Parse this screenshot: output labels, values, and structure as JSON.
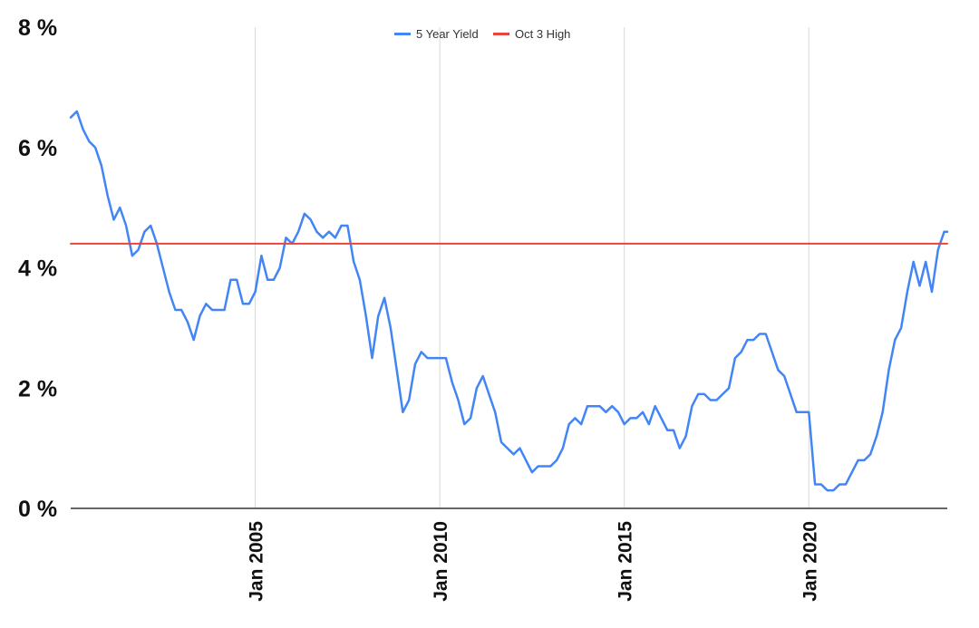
{
  "chart_data": {
    "type": "line",
    "title": "",
    "xlabel": "",
    "ylabel": "",
    "ylim": [
      0,
      8
    ],
    "xlim": [
      "2000-01",
      "2023-10"
    ],
    "grid": "vertical",
    "legend_position": "top",
    "y_ticks": [
      {
        "value": 0,
        "label": "0 %"
      },
      {
        "value": 2,
        "label": "2 %"
      },
      {
        "value": 4,
        "label": "4 %"
      },
      {
        "value": 6,
        "label": "6 %"
      },
      {
        "value": 8,
        "label": "8 %"
      }
    ],
    "x_ticks": [
      {
        "value": "2005-01",
        "label": "Jan 2005"
      },
      {
        "value": "2010-01",
        "label": "Jan 2010"
      },
      {
        "value": "2015-01",
        "label": "Jan 2015"
      },
      {
        "value": "2020-01",
        "label": "Jan 2020"
      }
    ],
    "series": [
      {
        "name": "5 Year Yield",
        "color": "#4285F4",
        "x": [
          "2000-01",
          "2000-03",
          "2000-05",
          "2000-07",
          "2000-09",
          "2000-11",
          "2001-01",
          "2001-03",
          "2001-05",
          "2001-07",
          "2001-09",
          "2001-11",
          "2002-01",
          "2002-03",
          "2002-05",
          "2002-07",
          "2002-09",
          "2002-11",
          "2003-01",
          "2003-03",
          "2003-05",
          "2003-07",
          "2003-09",
          "2003-11",
          "2004-01",
          "2004-03",
          "2004-05",
          "2004-07",
          "2004-09",
          "2004-11",
          "2005-01",
          "2005-03",
          "2005-05",
          "2005-07",
          "2005-09",
          "2005-11",
          "2006-01",
          "2006-03",
          "2006-05",
          "2006-07",
          "2006-09",
          "2006-11",
          "2007-01",
          "2007-03",
          "2007-05",
          "2007-07",
          "2007-09",
          "2007-11",
          "2008-01",
          "2008-03",
          "2008-05",
          "2008-07",
          "2008-09",
          "2008-11",
          "2009-01",
          "2009-03",
          "2009-05",
          "2009-07",
          "2009-09",
          "2009-11",
          "2010-01",
          "2010-03",
          "2010-05",
          "2010-07",
          "2010-09",
          "2010-11",
          "2011-01",
          "2011-03",
          "2011-05",
          "2011-07",
          "2011-09",
          "2011-11",
          "2012-01",
          "2012-03",
          "2012-05",
          "2012-07",
          "2012-09",
          "2012-11",
          "2013-01",
          "2013-03",
          "2013-05",
          "2013-07",
          "2013-09",
          "2013-11",
          "2014-01",
          "2014-03",
          "2014-05",
          "2014-07",
          "2014-09",
          "2014-11",
          "2015-01",
          "2015-03",
          "2015-05",
          "2015-07",
          "2015-09",
          "2015-11",
          "2016-01",
          "2016-03",
          "2016-05",
          "2016-07",
          "2016-09",
          "2016-11",
          "2017-01",
          "2017-03",
          "2017-05",
          "2017-07",
          "2017-09",
          "2017-11",
          "2018-01",
          "2018-03",
          "2018-05",
          "2018-07",
          "2018-09",
          "2018-11",
          "2019-01",
          "2019-03",
          "2019-05",
          "2019-07",
          "2019-09",
          "2019-11",
          "2020-01",
          "2020-03",
          "2020-05",
          "2020-07",
          "2020-09",
          "2020-11",
          "2021-01",
          "2021-03",
          "2021-05",
          "2021-07",
          "2021-09",
          "2021-11",
          "2022-01",
          "2022-03",
          "2022-05",
          "2022-07",
          "2022-09",
          "2022-11",
          "2023-01",
          "2023-03",
          "2023-05",
          "2023-07",
          "2023-09",
          "2023-10"
        ],
        "y": [
          6.5,
          6.6,
          6.3,
          6.1,
          6.0,
          5.7,
          5.2,
          4.8,
          5.0,
          4.7,
          4.2,
          4.3,
          4.6,
          4.7,
          4.4,
          4.0,
          3.6,
          3.3,
          3.3,
          3.1,
          2.8,
          3.2,
          3.4,
          3.3,
          3.3,
          3.3,
          3.8,
          3.8,
          3.4,
          3.4,
          3.6,
          4.2,
          3.8,
          3.8,
          4.0,
          4.5,
          4.4,
          4.6,
          4.9,
          4.8,
          4.6,
          4.5,
          4.6,
          4.5,
          4.7,
          4.7,
          4.1,
          3.8,
          3.2,
          2.5,
          3.2,
          3.5,
          3.0,
          2.3,
          1.6,
          1.8,
          2.4,
          2.6,
          2.5,
          2.5,
          2.5,
          2.5,
          2.1,
          1.8,
          1.4,
          1.5,
          2.0,
          2.2,
          1.9,
          1.6,
          1.1,
          1.0,
          0.9,
          1.0,
          0.8,
          0.6,
          0.7,
          0.7,
          0.7,
          0.8,
          1.0,
          1.4,
          1.5,
          1.4,
          1.7,
          1.7,
          1.7,
          1.6,
          1.7,
          1.6,
          1.4,
          1.5,
          1.5,
          1.6,
          1.4,
          1.7,
          1.5,
          1.3,
          1.3,
          1.0,
          1.2,
          1.7,
          1.9,
          1.9,
          1.8,
          1.8,
          1.9,
          2.0,
          2.5,
          2.6,
          2.8,
          2.8,
          2.9,
          2.9,
          2.6,
          2.3,
          2.2,
          1.9,
          1.6,
          1.6,
          1.6,
          0.4,
          0.4,
          0.3,
          0.3,
          0.4,
          0.4,
          0.6,
          0.8,
          0.8,
          0.9,
          1.2,
          1.6,
          2.3,
          2.8,
          3.0,
          3.6,
          4.1,
          3.7,
          4.1,
          3.6,
          4.3,
          4.6,
          4.6
        ]
      },
      {
        "name": "Oct 3 High",
        "color": "#E8453C",
        "x": [
          "2000-01",
          "2023-10"
        ],
        "y": [
          4.4,
          4.4
        ]
      }
    ]
  }
}
